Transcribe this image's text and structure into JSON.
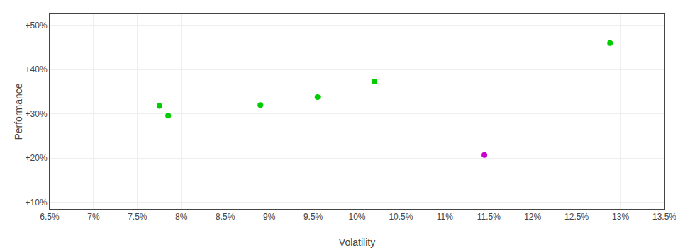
{
  "chart_data": {
    "type": "scatter",
    "x_label": "Volatility",
    "y_label": "Performance",
    "x": [
      0.0775,
      0.0785,
      0.089,
      0.0955,
      0.102,
      0.1145,
      0.1288
    ],
    "values": [
      0.318,
      0.296,
      0.32,
      0.338,
      0.373,
      0.207,
      0.46
    ],
    "colors": [
      "#00cc00",
      "#00cc00",
      "#00cc00",
      "#00cc00",
      "#00cc00",
      "#cc00cc",
      "#00cc00"
    ],
    "xlim": [
      0.065,
      0.135
    ],
    "ylim": [
      0.085,
      0.525
    ],
    "xticks": [
      {
        "value": 0.065,
        "label": "6.5%"
      },
      {
        "value": 0.07,
        "label": "7%"
      },
      {
        "value": 0.075,
        "label": "7.5%"
      },
      {
        "value": 0.08,
        "label": "8%"
      },
      {
        "value": 0.085,
        "label": "8.5%"
      },
      {
        "value": 0.09,
        "label": "9%"
      },
      {
        "value": 0.095,
        "label": "9.5%"
      },
      {
        "value": 0.1,
        "label": "10%"
      },
      {
        "value": 0.105,
        "label": "10.5%"
      },
      {
        "value": 0.11,
        "label": "11%"
      },
      {
        "value": 0.115,
        "label": "11.5%"
      },
      {
        "value": 0.12,
        "label": "12%"
      },
      {
        "value": 0.125,
        "label": "12.5%"
      },
      {
        "value": 0.13,
        "label": "13%"
      },
      {
        "value": 0.135,
        "label": "13.5%"
      }
    ],
    "yticks": [
      {
        "value": 0.1,
        "label": "+10%"
      },
      {
        "value": 0.2,
        "label": "+20%"
      },
      {
        "value": 0.3,
        "label": "+30%"
      },
      {
        "value": 0.4,
        "label": "+40%"
      },
      {
        "value": 0.5,
        "label": "+50%"
      }
    ],
    "grid": true
  }
}
